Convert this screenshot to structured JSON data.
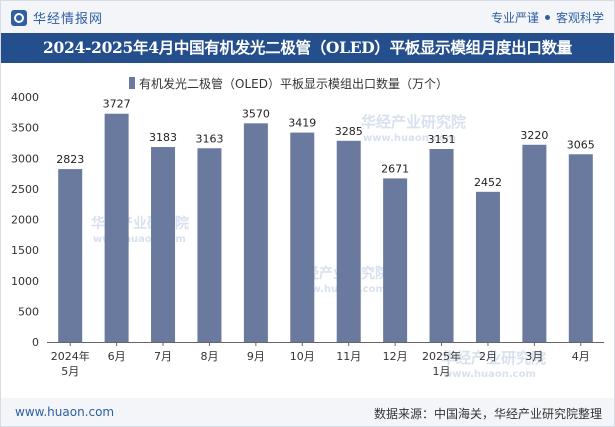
{
  "header": {
    "brand": "华经情报网",
    "tagline_left": "专业严谨",
    "tagline_right": "客观科学",
    "title": "2024-2025年4月中国有机发光二极管（OLED）平板显示模组月度出口数量"
  },
  "footer": {
    "site": "www.huaon.com",
    "source": "数据来源：中国海关，华经产业研究院整理"
  },
  "watermark": {
    "text": "华经产业研究院",
    "url": "www.huaon.com"
  },
  "colors": {
    "bar": "#697a9e",
    "header_bg": "#244f8c",
    "accent": "#2f5fa3"
  },
  "chart_data": {
    "type": "bar",
    "categories": [
      "2024年\n5月",
      "6月",
      "7月",
      "8月",
      "9月",
      "10月",
      "11月",
      "12月",
      "2025年\n1月",
      "2月",
      "3月",
      "4月"
    ],
    "series": [
      {
        "name": "有机发光二极管（OLED）平板显示模组出口数量（万个）",
        "values": [
          2823,
          3727,
          3183,
          3163,
          3570,
          3419,
          3285,
          2671,
          3151,
          2452,
          3220,
          3065
        ]
      }
    ],
    "ylim": [
      0,
      4000
    ],
    "yticks": [
      0,
      500,
      1000,
      1500,
      2000,
      2500,
      3000,
      3500,
      4000
    ],
    "legend": "top-center",
    "grid": false,
    "data_labels": true
  }
}
